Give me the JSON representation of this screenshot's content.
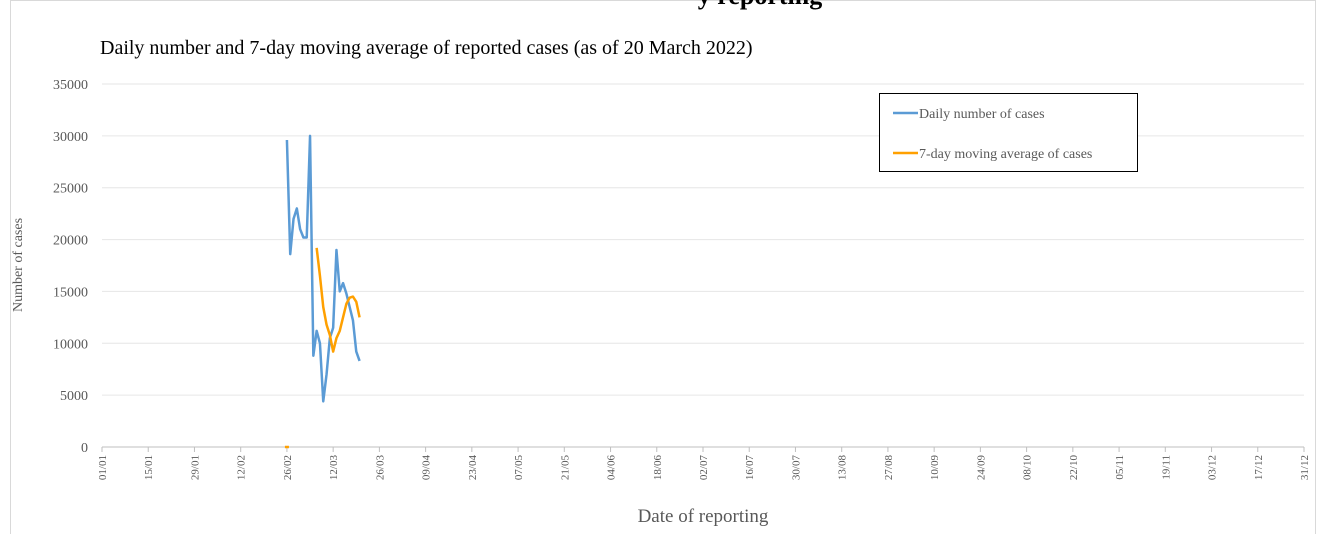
{
  "page_heading": "y reporting",
  "chart_data": {
    "type": "line",
    "title": "Daily number and 7-day moving average of reported cases (as of 20 March 2022)",
    "x_label": "Date of reporting",
    "y_label": "Number of cases",
    "x": [
      "26/02",
      "27/02",
      "28/02",
      "01/03",
      "02/03",
      "03/03",
      "04/03",
      "05/03",
      "06/03",
      "07/03",
      "08/03",
      "09/03",
      "10/03",
      "11/03",
      "12/03",
      "13/03",
      "14/03",
      "15/03",
      "16/03",
      "17/03",
      "18/03",
      "19/03",
      "20/03"
    ],
    "series": [
      {
        "name": "Daily number of cases",
        "color": "#5b9bd5",
        "values": [
          29600,
          18600,
          22000,
          23000,
          21000,
          20200,
          20200,
          30000,
          8800,
          11200,
          10000,
          4400,
          7000,
          10500,
          11500,
          19000,
          15000,
          15800,
          14800,
          13500,
          12200,
          9200,
          8300
        ]
      },
      {
        "name": "7-day moving average of cases",
        "color": "#ffa000",
        "values": [
          0,
          null,
          null,
          null,
          null,
          null,
          null,
          null,
          null,
          19200,
          16500,
          13500,
          11800,
          10800,
          9200,
          10500,
          11200,
          12500,
          13800,
          14400,
          14500,
          14000,
          12500
        ]
      }
    ],
    "xlim": [
      "01/01",
      "31/12"
    ],
    "xticks": [
      "01/01",
      "15/01",
      "29/01",
      "12/02",
      "26/02",
      "12/03",
      "26/03",
      "09/04",
      "23/04",
      "07/05",
      "21/05",
      "04/06",
      "18/06",
      "02/07",
      "16/07",
      "30/07",
      "13/08",
      "27/08",
      "10/09",
      "24/09",
      "08/10",
      "22/10",
      "05/11",
      "19/11",
      "03/12",
      "17/12",
      "31/12"
    ],
    "ylim": [
      0,
      35000
    ],
    "yticks": [
      0,
      5000,
      10000,
      15000,
      20000,
      25000,
      30000,
      35000
    ],
    "grid": true,
    "legend": "upper right"
  }
}
